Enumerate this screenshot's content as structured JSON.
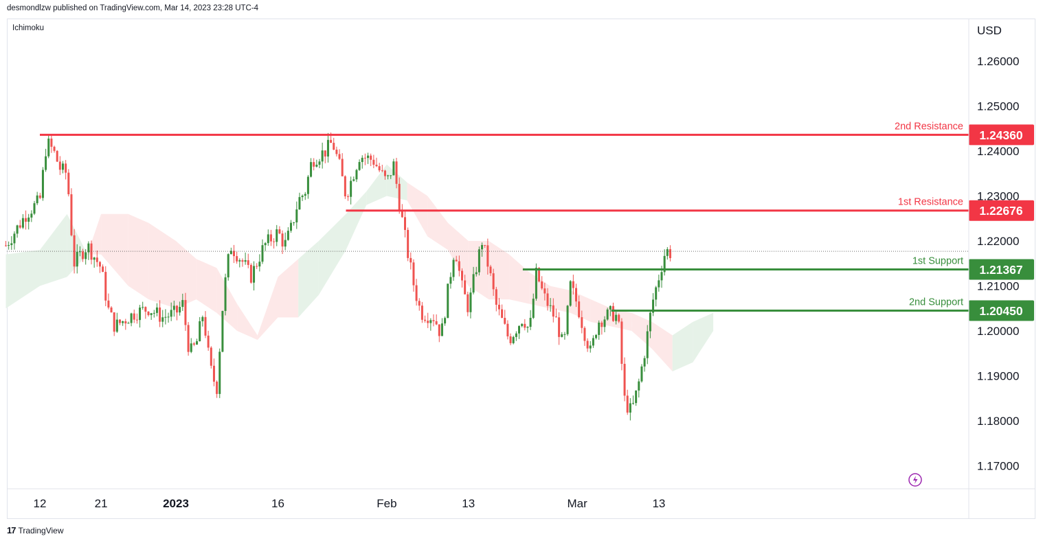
{
  "header": {
    "published": "desmondlzw published on TradingView.com, Mar 14, 2023 23:28 UTC-4"
  },
  "indicator": {
    "name": "Ichimoku"
  },
  "axis": {
    "currency": "USD"
  },
  "footer": {
    "brand": "TradingView",
    "logo": "17"
  },
  "colors": {
    "resistance": "#f23645",
    "support": "#388e3c",
    "candle_up": "#388e3c",
    "candle_down": "#ef5350",
    "cloud_green": "#e6f2e8",
    "cloud_red": "#fde8e8",
    "grid_border": "#e0e3eb"
  },
  "chart_data": {
    "type": "candlestick",
    "symbol_currency": "USD",
    "ylim": [
      1.165,
      1.265
    ],
    "y_ticks": [
      "1.26000",
      "1.25000",
      "1.24000",
      "1.23000",
      "1.22000",
      "1.21000",
      "1.20000",
      "1.19000",
      "1.18000",
      "1.17000"
    ],
    "x_ticks": [
      {
        "label": "12",
        "date": "2022-12-12",
        "bold": false
      },
      {
        "label": "21",
        "date": "2022-12-21",
        "bold": false
      },
      {
        "label": "2023",
        "date": "2023-01-01",
        "bold": true
      },
      {
        "label": "16",
        "date": "2023-01-16",
        "bold": false
      },
      {
        "label": "Feb",
        "date": "2023-02-01",
        "bold": false
      },
      {
        "label": "13",
        "date": "2023-02-13",
        "bold": false
      },
      {
        "label": "Mar",
        "date": "2023-03-01",
        "bold": false
      },
      {
        "label": "13",
        "date": "2023-03-13",
        "bold": false
      }
    ],
    "levels": [
      {
        "name": "2nd Resistance",
        "value": 1.2436,
        "price": "1.24360",
        "kind": "resistance",
        "from": "2022-12-12"
      },
      {
        "name": "1st Resistance",
        "value": 1.22676,
        "price": "1.22676",
        "kind": "resistance",
        "from": "2023-01-26"
      },
      {
        "name": "1st Support",
        "value": 1.21367,
        "price": "1.21367",
        "kind": "support",
        "from": "2023-02-21"
      },
      {
        "name": "2nd Support",
        "value": 1.2045,
        "price": "1.20450",
        "kind": "support",
        "from": "2023-03-06"
      }
    ],
    "last_price": 1.2177,
    "close_path": [
      [
        "2022-12-07",
        1.219
      ],
      [
        "2022-12-10",
        1.226
      ],
      [
        "2022-12-12",
        1.229
      ],
      [
        "2022-12-13",
        1.242
      ],
      [
        "2022-12-14",
        1.24
      ],
      [
        "2022-12-15",
        1.236
      ],
      [
        "2022-12-16",
        1.235
      ],
      [
        "2022-12-17",
        1.215
      ],
      [
        "2022-12-19",
        1.219
      ],
      [
        "2022-12-21",
        1.214
      ],
      [
        "2022-12-22",
        1.205
      ],
      [
        "2022-12-23",
        1.201
      ],
      [
        "2022-12-26",
        1.204
      ],
      [
        "2022-12-28",
        1.205
      ],
      [
        "2022-12-30",
        1.203
      ],
      [
        "2023-01-01",
        1.204
      ],
      [
        "2023-01-02",
        1.206
      ],
      [
        "2023-01-03",
        1.195
      ],
      [
        "2023-01-04",
        1.197
      ],
      [
        "2023-01-05",
        1.204
      ],
      [
        "2023-01-06",
        1.192
      ],
      [
        "2023-01-07",
        1.187
      ],
      [
        "2023-01-08",
        1.208
      ],
      [
        "2023-01-09",
        1.219
      ],
      [
        "2023-01-11",
        1.215
      ],
      [
        "2023-01-12",
        1.212
      ],
      [
        "2023-01-14",
        1.219
      ],
      [
        "2023-01-16",
        1.222
      ],
      [
        "2023-01-17",
        1.219
      ],
      [
        "2023-01-18",
        1.223
      ],
      [
        "2023-01-19",
        1.229
      ],
      [
        "2023-01-20",
        1.231
      ],
      [
        "2023-01-21",
        1.238
      ],
      [
        "2023-01-23",
        1.24
      ],
      [
        "2023-01-24",
        1.242
      ],
      [
        "2023-01-25",
        1.237
      ],
      [
        "2023-01-26",
        1.23
      ],
      [
        "2023-01-28",
        1.239
      ],
      [
        "2023-01-30",
        1.238
      ],
      [
        "2023-02-01",
        1.233
      ],
      [
        "2023-02-02",
        1.237
      ],
      [
        "2023-02-03",
        1.227
      ],
      [
        "2023-02-04",
        1.218
      ],
      [
        "2023-02-05",
        1.21
      ],
      [
        "2023-02-06",
        1.204
      ],
      [
        "2023-02-08",
        1.203
      ],
      [
        "2023-02-09",
        1.199
      ],
      [
        "2023-02-10",
        1.209
      ],
      [
        "2023-02-11",
        1.219
      ],
      [
        "2023-02-12",
        1.21
      ],
      [
        "2023-02-13",
        1.205
      ],
      [
        "2023-02-14",
        1.213
      ],
      [
        "2023-02-15",
        1.22
      ],
      [
        "2023-02-16",
        1.214
      ],
      [
        "2023-02-17",
        1.206
      ],
      [
        "2023-02-19",
        1.198
      ],
      [
        "2023-02-21",
        1.203
      ],
      [
        "2023-02-22",
        1.2
      ],
      [
        "2023-02-23",
        1.213
      ],
      [
        "2023-02-24",
        1.208
      ],
      [
        "2023-02-26",
        1.202
      ],
      [
        "2023-02-27",
        1.196
      ],
      [
        "2023-02-28",
        1.21
      ],
      [
        "2023-03-01",
        1.206
      ],
      [
        "2023-03-02",
        1.2
      ],
      [
        "2023-03-03",
        1.195
      ],
      [
        "2023-03-04",
        1.202
      ],
      [
        "2023-03-06",
        1.204
      ],
      [
        "2023-03-07",
        1.203
      ],
      [
        "2023-03-08",
        1.184
      ],
      [
        "2023-03-09",
        1.182
      ],
      [
        "2023-03-10",
        1.188
      ],
      [
        "2023-03-11",
        1.196
      ],
      [
        "2023-03-12",
        1.206
      ],
      [
        "2023-03-13",
        1.212
      ],
      [
        "2023-03-14",
        1.218
      ],
      [
        "2023-03-15",
        1.217
      ]
    ],
    "cloud": [
      [
        "2022-12-07",
        1.217,
        1.205
      ],
      [
        "2022-12-12",
        1.218,
        1.21
      ],
      [
        "2022-12-16",
        1.226,
        1.212
      ],
      [
        "2022-12-19",
        1.217,
        1.217
      ],
      [
        "2022-12-21",
        1.226,
        1.217
      ],
      [
        "2022-12-25",
        1.226,
        1.21
      ],
      [
        "2022-12-28",
        1.224,
        1.207
      ],
      [
        "2023-01-01",
        1.22,
        1.205
      ],
      [
        "2023-01-04",
        1.216,
        1.207
      ],
      [
        "2023-01-07",
        1.214,
        1.204
      ],
      [
        "2023-01-10",
        1.206,
        1.2
      ],
      [
        "2023-01-13",
        1.199,
        1.198
      ],
      [
        "2023-01-16",
        1.212,
        1.203
      ],
      [
        "2023-01-19",
        1.216,
        1.203
      ],
      [
        "2023-01-22",
        1.22,
        1.208
      ],
      [
        "2023-01-26",
        1.226,
        1.218
      ],
      [
        "2023-01-29",
        1.231,
        1.228
      ],
      [
        "2023-02-01",
        1.237,
        1.23
      ],
      [
        "2023-02-04",
        1.233,
        1.229
      ],
      [
        "2023-02-07",
        1.23,
        1.221
      ],
      [
        "2023-02-10",
        1.224,
        1.218
      ],
      [
        "2023-02-13",
        1.22,
        1.21
      ],
      [
        "2023-02-16",
        1.22,
        1.207
      ],
      [
        "2023-02-19",
        1.217,
        1.207
      ],
      [
        "2023-02-22",
        1.213,
        1.206
      ],
      [
        "2023-02-25",
        1.21,
        1.205
      ],
      [
        "2023-02-28",
        1.209,
        1.204
      ],
      [
        "2023-03-03",
        1.207,
        1.202
      ],
      [
        "2023-03-06",
        1.205,
        1.201
      ],
      [
        "2023-03-09",
        1.204,
        1.2
      ],
      [
        "2023-03-12",
        1.202,
        1.196
      ],
      [
        "2023-03-15",
        1.199,
        1.191
      ],
      [
        "2023-03-18",
        1.202,
        1.193
      ],
      [
        "2023-03-21",
        1.204,
        1.2
      ]
    ]
  }
}
